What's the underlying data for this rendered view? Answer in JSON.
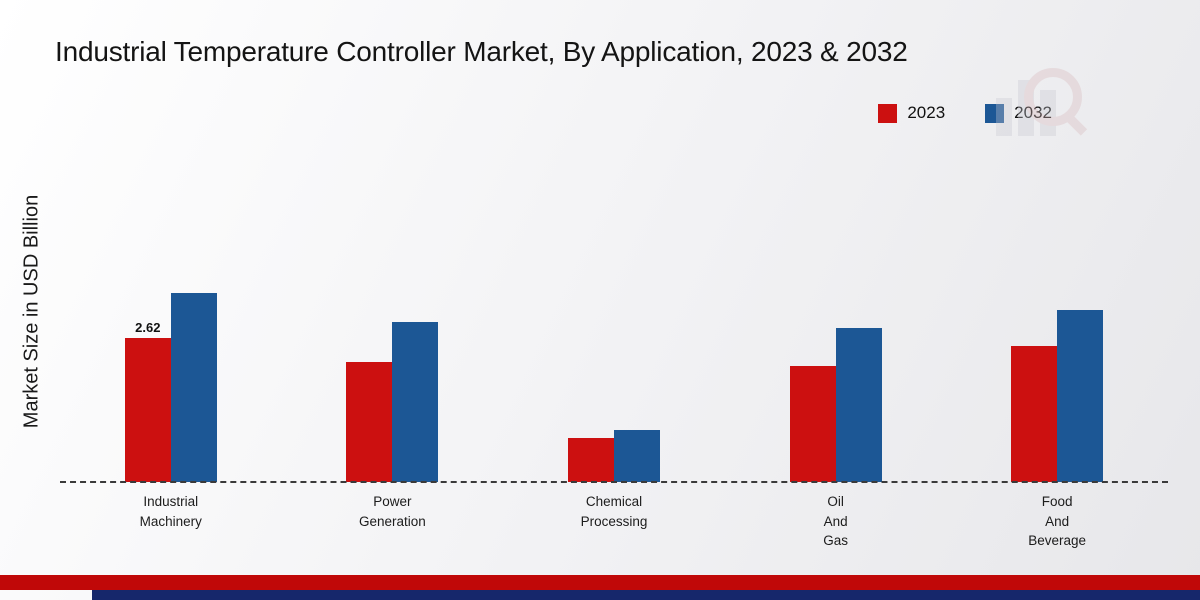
{
  "header": {
    "title": "Industrial Temperature Controller Market, By Application, 2023 & 2032"
  },
  "axis": {
    "y_label": "Market Size in USD Billion"
  },
  "watermark": {
    "icon": "bar-chart-magnifier-logo"
  },
  "footer": {
    "stripes": [
      {
        "name": "red-stripe",
        "color": "#c00808"
      },
      {
        "name": "blue-stripe",
        "color": "#16276b"
      }
    ]
  },
  "chart_data": {
    "type": "bar",
    "title": "Industrial Temperature Controller Market, By Application, 2023 & 2032",
    "xlabel": "",
    "ylabel": "Market Size in USD Billion",
    "ylim": [
      0,
      4
    ],
    "grid": false,
    "legend_position": "top-right",
    "categories": [
      [
        "Industrial",
        "Machinery"
      ],
      [
        "Power",
        "Generation"
      ],
      [
        "Chemical",
        "Processing"
      ],
      [
        "Oil",
        "And",
        "Gas"
      ],
      [
        "Food",
        "And",
        "Beverage"
      ]
    ],
    "series": [
      {
        "name": "2023",
        "color": "#cc1010",
        "values": [
          2.62,
          2.18,
          0.8,
          2.11,
          2.47
        ]
      },
      {
        "name": "2032",
        "color": "#1c5795",
        "values": [
          3.44,
          2.91,
          0.95,
          2.8,
          3.13
        ]
      }
    ],
    "bar_label": {
      "series_index": 0,
      "category_index": 0,
      "text": "2.62"
    }
  }
}
